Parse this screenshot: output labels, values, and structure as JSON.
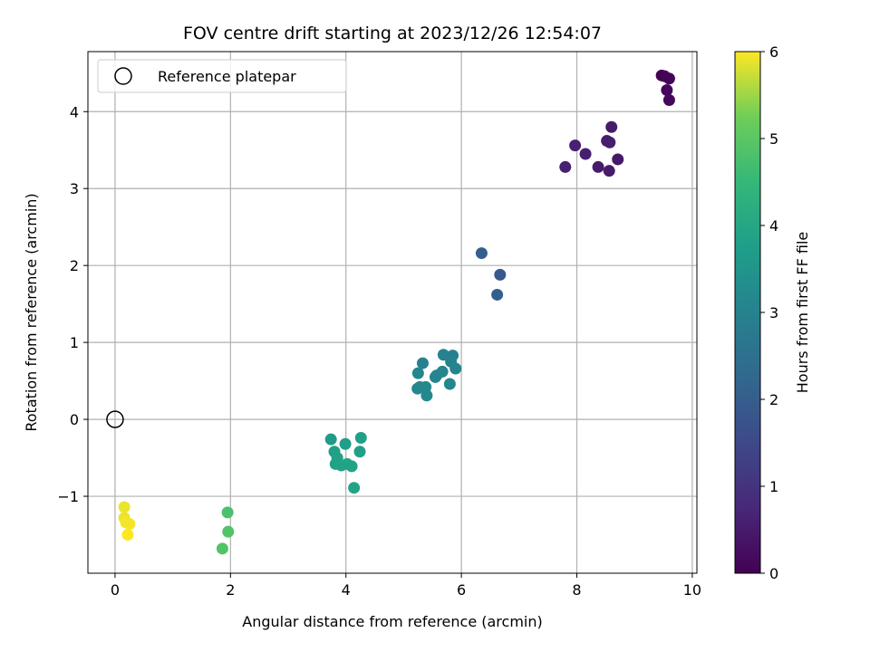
{
  "chart_data": {
    "type": "scatter",
    "title": "FOV centre drift starting at 2023/12/26 12:54:07",
    "xlabel": "Angular distance from reference (arcmin)",
    "ylabel": "Rotation from reference (arcmin)",
    "xlim": [
      -0.47,
      10.08
    ],
    "ylim": [
      -2.0,
      4.78
    ],
    "xticks": [
      0,
      2,
      4,
      6,
      8,
      10
    ],
    "yticks": [
      -1,
      0,
      1,
      2,
      3,
      4
    ],
    "xtick_labels": [
      "0",
      "2",
      "4",
      "6",
      "8",
      "10"
    ],
    "ytick_labels": [
      "−1",
      "0",
      "1",
      "2",
      "3",
      "4"
    ],
    "grid": true,
    "colormap": "viridis",
    "colorbar": {
      "label": "Hours from first FF file",
      "range": [
        0,
        6
      ],
      "ticks": [
        0,
        1,
        2,
        3,
        4,
        5,
        6
      ],
      "tick_labels": [
        "0",
        "1",
        "2",
        "3",
        "4",
        "5",
        "6"
      ]
    },
    "legend": {
      "position": "upper-left",
      "entries": [
        "Reference platepar"
      ]
    },
    "reference": {
      "x": 0,
      "y": 0
    },
    "points": [
      {
        "x": 9.47,
        "y": 4.47,
        "c": 0.02
      },
      {
        "x": 9.52,
        "y": 4.46,
        "c": 0.05
      },
      {
        "x": 9.6,
        "y": 4.43,
        "c": 0.08
      },
      {
        "x": 9.56,
        "y": 4.28,
        "c": 0.12
      },
      {
        "x": 9.6,
        "y": 4.15,
        "c": 0.15
      },
      {
        "x": 8.6,
        "y": 3.8,
        "c": 0.5
      },
      {
        "x": 7.97,
        "y": 3.56,
        "c": 0.62
      },
      {
        "x": 8.15,
        "y": 3.45,
        "c": 0.58
      },
      {
        "x": 8.52,
        "y": 3.62,
        "c": 0.55
      },
      {
        "x": 8.57,
        "y": 3.6,
        "c": 0.53
      },
      {
        "x": 8.71,
        "y": 3.38,
        "c": 0.45
      },
      {
        "x": 8.37,
        "y": 3.28,
        "c": 0.48
      },
      {
        "x": 7.8,
        "y": 3.28,
        "c": 0.6
      },
      {
        "x": 8.56,
        "y": 3.23,
        "c": 0.5
      },
      {
        "x": 6.35,
        "y": 2.16,
        "c": 2.0
      },
      {
        "x": 6.67,
        "y": 1.88,
        "c": 1.9
      },
      {
        "x": 6.62,
        "y": 1.62,
        "c": 2.05
      },
      {
        "x": 5.33,
        "y": 0.73,
        "c": 3.0
      },
      {
        "x": 5.69,
        "y": 0.84,
        "c": 3.0
      },
      {
        "x": 5.85,
        "y": 0.83,
        "c": 2.95
      },
      {
        "x": 5.82,
        "y": 0.75,
        "c": 3.0
      },
      {
        "x": 5.9,
        "y": 0.66,
        "c": 3.05
      },
      {
        "x": 5.67,
        "y": 0.62,
        "c": 3.1
      },
      {
        "x": 5.57,
        "y": 0.57,
        "c": 3.1
      },
      {
        "x": 5.25,
        "y": 0.6,
        "c": 3.1
      },
      {
        "x": 5.28,
        "y": 0.42,
        "c": 3.1
      },
      {
        "x": 5.24,
        "y": 0.4,
        "c": 3.15
      },
      {
        "x": 5.38,
        "y": 0.42,
        "c": 3.2
      },
      {
        "x": 5.4,
        "y": 0.31,
        "c": 3.2
      },
      {
        "x": 5.8,
        "y": 0.46,
        "c": 3.1
      },
      {
        "x": 5.55,
        "y": 0.55,
        "c": 3.05
      },
      {
        "x": 3.74,
        "y": -0.26,
        "c": 3.7
      },
      {
        "x": 4.26,
        "y": -0.24,
        "c": 3.8
      },
      {
        "x": 3.99,
        "y": -0.32,
        "c": 3.75
      },
      {
        "x": 3.8,
        "y": -0.42,
        "c": 3.8
      },
      {
        "x": 4.24,
        "y": -0.42,
        "c": 3.8
      },
      {
        "x": 3.85,
        "y": -0.5,
        "c": 3.85
      },
      {
        "x": 3.82,
        "y": -0.58,
        "c": 3.85
      },
      {
        "x": 3.92,
        "y": -0.6,
        "c": 3.9
      },
      {
        "x": 4.02,
        "y": -0.58,
        "c": 3.9
      },
      {
        "x": 4.1,
        "y": -0.61,
        "c": 3.9
      },
      {
        "x": 4.14,
        "y": -0.89,
        "c": 3.9
      },
      {
        "x": 1.95,
        "y": -1.21,
        "c": 4.8
      },
      {
        "x": 1.96,
        "y": -1.46,
        "c": 4.9
      },
      {
        "x": 1.86,
        "y": -1.68,
        "c": 4.9
      },
      {
        "x": 0.16,
        "y": -1.14,
        "c": 5.9
      },
      {
        "x": 0.16,
        "y": -1.28,
        "c": 5.9
      },
      {
        "x": 0.19,
        "y": -1.34,
        "c": 5.95
      },
      {
        "x": 0.25,
        "y": -1.36,
        "c": 5.95
      },
      {
        "x": 0.22,
        "y": -1.5,
        "c": 6.0
      }
    ]
  }
}
